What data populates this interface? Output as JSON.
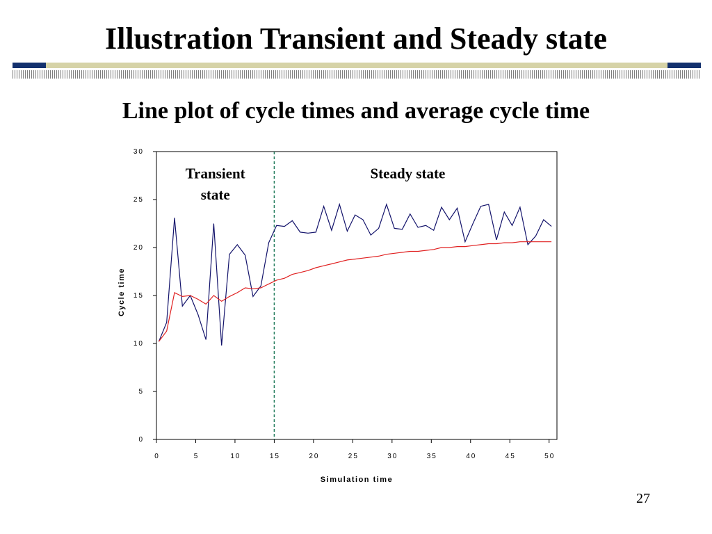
{
  "slide": {
    "title": "Illustration Transient and Steady state",
    "subtitle": "Line plot of cycle times and average cycle time",
    "page_number": "27"
  },
  "colors": {
    "band_accent": "#13316e",
    "band_fill": "#d6d3a7",
    "cycle_line": "#13136b",
    "average_line": "#e02020",
    "divider": "#1f7a5a"
  },
  "chart_data": {
    "type": "line",
    "title": "",
    "xlabel": "Simulation time",
    "ylabel": "Cycle time",
    "xlim": [
      0,
      51
    ],
    "ylim": [
      0,
      30
    ],
    "xticks": [
      0,
      5,
      10,
      15,
      20,
      25,
      30,
      35,
      40,
      45,
      50
    ],
    "xtick_labels": [
      "0",
      "5",
      "10",
      "15",
      "20",
      "25",
      "30",
      "35",
      "40",
      "45",
      "50"
    ],
    "yticks": [
      0,
      5,
      10,
      15,
      20,
      25,
      30
    ],
    "ytick_labels": [
      "0",
      "5",
      "10",
      "15",
      "20",
      "25",
      "30"
    ],
    "grid": false,
    "x": [
      0.3,
      1.3,
      2.3,
      3.3,
      4.3,
      5.3,
      6.3,
      7.3,
      8.3,
      9.3,
      10.3,
      11.3,
      12.3,
      13.3,
      14.3,
      15.3,
      16.3,
      17.3,
      18.3,
      19.3,
      20.3,
      21.3,
      22.3,
      23.3,
      24.3,
      25.3,
      26.3,
      27.3,
      28.3,
      29.3,
      30.3,
      31.3,
      32.3,
      33.3,
      34.3,
      35.3,
      36.3,
      37.3,
      38.3,
      39.3,
      40.3,
      41.3,
      42.3,
      43.3,
      44.3,
      45.3,
      46.3,
      47.3,
      48.3,
      49.3,
      50.3
    ],
    "series": [
      {
        "values": [
          10.2,
          12.2,
          23.1,
          13.9,
          15.0,
          13.0,
          10.4,
          22.5,
          9.8,
          19.3,
          20.3,
          19.2,
          14.9,
          16.0,
          20.5,
          22.3,
          22.2,
          22.8,
          21.6,
          21.5,
          21.6,
          24.3,
          21.8,
          24.5,
          21.7,
          23.4,
          22.9,
          21.3,
          22.0,
          24.5,
          22.0,
          21.9,
          23.5,
          22.1,
          22.3,
          21.8,
          24.2,
          22.9,
          24.1,
          20.6,
          22.5,
          24.3,
          24.5,
          20.8,
          23.7,
          22.3,
          24.2,
          20.3,
          21.2,
          22.9,
          22.2
        ]
      },
      {
        "values": [
          10.2,
          11.3,
          15.3,
          14.9,
          15.0,
          14.6,
          14.1,
          15.0,
          14.4,
          14.9,
          15.3,
          15.8,
          15.7,
          15.8,
          16.2,
          16.6,
          16.8,
          17.2,
          17.4,
          17.6,
          17.9,
          18.1,
          18.3,
          18.5,
          18.7,
          18.8,
          18.9,
          19.0,
          19.1,
          19.3,
          19.4,
          19.5,
          19.6,
          19.6,
          19.7,
          19.8,
          20.0,
          20.0,
          20.1,
          20.1,
          20.2,
          20.3,
          20.4,
          20.4,
          20.5,
          20.5,
          20.6,
          20.6,
          20.6,
          20.6,
          20.6
        ]
      }
    ],
    "divider_x": 15.0,
    "annotations": [
      {
        "text": "Transient",
        "x": 7.5,
        "y": 27.2
      },
      {
        "text": "state",
        "x": 7.5,
        "y": 25.0
      },
      {
        "text": "Steady state",
        "x": 32.0,
        "y": 27.2
      }
    ]
  }
}
